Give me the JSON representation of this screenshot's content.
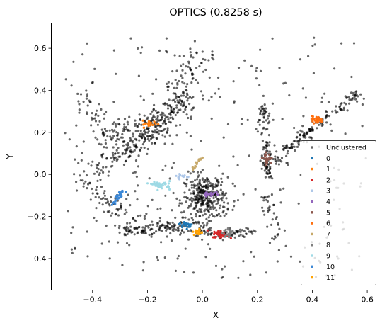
{
  "chart_data": {
    "type": "scatter",
    "title": "OPTICS (0.8258 s)",
    "xlabel": "X",
    "ylabel": "Y",
    "xlim": [
      -0.55,
      0.65
    ],
    "ylim": [
      -0.55,
      0.72
    ],
    "xticks": [
      -0.4,
      -0.2,
      0.0,
      0.2,
      0.4,
      0.6
    ],
    "xtick_labels": [
      "−0.4",
      "−0.2",
      "0.0",
      "0.2",
      "0.4",
      "0.6"
    ],
    "yticks": [
      -0.4,
      -0.2,
      0.0,
      0.2,
      0.4,
      0.6
    ],
    "ytick_labels": [
      "−0.4",
      "−0.2",
      "0.0",
      "0.2",
      "0.4",
      "0.6"
    ],
    "grid": false,
    "legend_position": "lower-right",
    "unclustered": {
      "name": "Unclustered",
      "color": "#000000",
      "density_regions": [
        {
          "shape": "segment",
          "from": [
            -0.47,
            0.42
          ],
          "to": [
            -0.3,
            0.14
          ],
          "spread": 0.035,
          "count": 40
        },
        {
          "shape": "segment",
          "from": [
            -0.28,
            0.13
          ],
          "to": [
            -0.05,
            0.36
          ],
          "spread": 0.04,
          "count": 120
        },
        {
          "shape": "segment",
          "from": [
            -0.38,
            0.16
          ],
          "to": [
            -0.15,
            0.28
          ],
          "spread": 0.035,
          "count": 80
        },
        {
          "shape": "segment",
          "from": [
            -0.4,
            0.02
          ],
          "to": [
            -0.17,
            0.2
          ],
          "spread": 0.05,
          "count": 110
        },
        {
          "shape": "segment",
          "from": [
            -0.15,
            0.18
          ],
          "to": [
            -0.02,
            0.58
          ],
          "spread": 0.05,
          "count": 120
        },
        {
          "shape": "segment",
          "from": [
            -0.44,
            -0.02
          ],
          "to": [
            -0.25,
            -0.22
          ],
          "spread": 0.04,
          "count": 60
        },
        {
          "shape": "segment",
          "from": [
            -0.3,
            -0.27
          ],
          "to": [
            -0.14,
            -0.25
          ],
          "spread": 0.025,
          "count": 70
        },
        {
          "shape": "segment",
          "from": [
            -0.16,
            -0.24
          ],
          "to": [
            0.02,
            -0.28
          ],
          "spread": 0.025,
          "count": 70
        },
        {
          "shape": "segment",
          "from": [
            0.05,
            -0.29
          ],
          "to": [
            0.18,
            -0.27
          ],
          "spread": 0.02,
          "count": 50
        },
        {
          "shape": "blob",
          "center": [
            0.01,
            -0.11
          ],
          "rx": 0.07,
          "ry": 0.1,
          "count": 320
        },
        {
          "shape": "segment",
          "from": [
            0.22,
            0.33
          ],
          "to": [
            0.24,
            -0.02
          ],
          "spread": 0.015,
          "count": 90
        },
        {
          "shape": "segment",
          "from": [
            0.23,
            0.02
          ],
          "to": [
            0.34,
            0.14
          ],
          "spread": 0.03,
          "count": 40
        },
        {
          "shape": "segment",
          "from": [
            0.3,
            0.12
          ],
          "to": [
            0.57,
            0.39
          ],
          "spread": 0.018,
          "count": 120
        },
        {
          "shape": "segment",
          "from": [
            0.23,
            -0.1
          ],
          "to": [
            0.27,
            -0.3
          ],
          "spread": 0.02,
          "count": 30
        },
        {
          "shape": "uniform",
          "xlim": [
            -0.5,
            0.6
          ],
          "ylim": [
            -0.5,
            0.66
          ],
          "count": 330
        }
      ]
    },
    "series": [
      {
        "name": "0",
        "color": "#1f77b4",
        "region": {
          "shape": "blob",
          "center": [
            -0.06,
            -0.24
          ],
          "rx": 0.022,
          "ry": 0.014
        },
        "count": 24
      },
      {
        "name": "1",
        "color": "#ff7f0e",
        "region": {
          "shape": "blob",
          "center": [
            -0.19,
            0.24
          ],
          "rx": 0.025,
          "ry": 0.015
        },
        "count": 24
      },
      {
        "name": "2",
        "color": "#d62728",
        "region": {
          "shape": "blob",
          "center": [
            0.065,
            -0.285
          ],
          "rx": 0.025,
          "ry": 0.016
        },
        "count": 42
      },
      {
        "name": "3",
        "color": "#aec7e8",
        "region": {
          "shape": "blob",
          "center": [
            -0.075,
            -0.01
          ],
          "rx": 0.025,
          "ry": 0.014
        },
        "count": 16
      },
      {
        "name": "4",
        "color": "#9467bd",
        "region": {
          "shape": "blob",
          "center": [
            0.025,
            -0.09
          ],
          "rx": 0.02,
          "ry": 0.012
        },
        "count": 22
      },
      {
        "name": "5",
        "color": "#8c564b",
        "region": {
          "shape": "blob",
          "center": [
            0.235,
            0.075
          ],
          "rx": 0.014,
          "ry": 0.022
        },
        "count": 26
      },
      {
        "name": "6",
        "color": "#ff6f0e",
        "region": {
          "shape": "blob",
          "center": [
            0.415,
            0.26
          ],
          "rx": 0.022,
          "ry": 0.015
        },
        "count": 30
      },
      {
        "name": "7",
        "color": "#c7a96a",
        "region": {
          "shape": "segment",
          "from": [
            -0.035,
            0.02
          ],
          "to": [
            -0.005,
            0.08
          ]
        },
        "count": 18
      },
      {
        "name": "8",
        "color": "#7f7f7f",
        "region": {
          "shape": "blob",
          "center": [
            0.095,
            -0.28
          ],
          "rx": 0.018,
          "ry": 0.016
        },
        "count": 24
      },
      {
        "name": "9",
        "color": "#9edae5",
        "region": {
          "shape": "blob",
          "center": [
            -0.15,
            -0.05
          ],
          "rx": 0.03,
          "ry": 0.016
        },
        "count": 40
      },
      {
        "name": "10",
        "color": "#3b87d6",
        "region": {
          "shape": "segment",
          "from": [
            -0.33,
            -0.15
          ],
          "to": [
            -0.29,
            -0.08
          ]
        },
        "count": 30
      },
      {
        "name": "11",
        "color": "#ffa200",
        "region": {
          "shape": "blob",
          "center": [
            -0.015,
            -0.275
          ],
          "rx": 0.014,
          "ry": 0.014
        },
        "count": 20
      }
    ]
  }
}
